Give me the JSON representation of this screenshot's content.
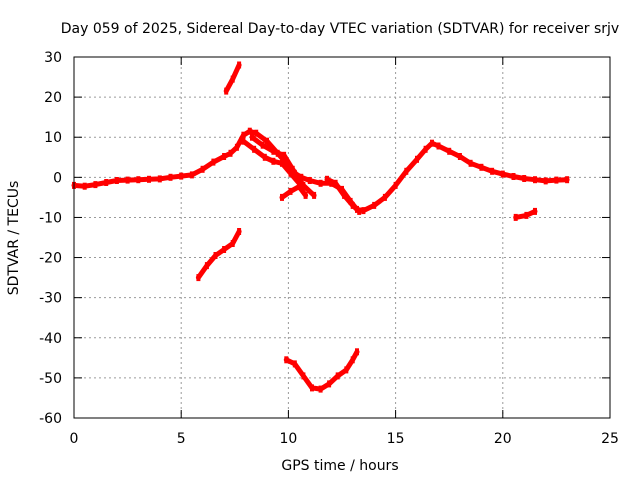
{
  "chart_data": {
    "type": "scatter",
    "title": "Day 059 of 2025, Sidereal Day-to-day VTEC variation (SDTVAR) for receiver srjv",
    "xlabel": "GPS time / hours",
    "ylabel": "SDTVAR / TECUs",
    "xlim": [
      0,
      25
    ],
    "ylim": [
      -60,
      30
    ],
    "x_ticks": [
      0,
      5,
      10,
      15,
      20,
      25
    ],
    "y_ticks": [
      -60,
      -50,
      -40,
      -30,
      -20,
      -10,
      0,
      10,
      20,
      30
    ],
    "grid": true,
    "legend": "none",
    "series_color": "#ff0000",
    "series": [
      {
        "name": "main-track-1",
        "points": [
          [
            0,
            -2
          ],
          [
            0.5,
            -2.2
          ],
          [
            1,
            -1.8
          ],
          [
            1.5,
            -1.3
          ],
          [
            2,
            -0.8
          ],
          [
            2.5,
            -0.7
          ],
          [
            3,
            -0.6
          ],
          [
            3.5,
            -0.5
          ],
          [
            4,
            -0.4
          ],
          [
            4.5,
            0
          ],
          [
            5,
            0.3
          ],
          [
            5.5,
            0.6
          ],
          [
            6,
            2
          ],
          [
            6.5,
            3.8
          ],
          [
            7,
            5.2
          ],
          [
            7.3,
            6
          ],
          [
            7.6,
            7.5
          ],
          [
            7.9,
            10.5
          ],
          [
            8.2,
            11.5
          ],
          [
            8.5,
            11
          ],
          [
            9,
            9
          ],
          [
            9.5,
            6
          ],
          [
            10,
            3
          ],
          [
            10.3,
            1
          ],
          [
            10.6,
            0
          ],
          [
            11,
            -0.8
          ],
          [
            11.5,
            -1.5
          ],
          [
            12,
            -1.5
          ],
          [
            12.5,
            -3
          ],
          [
            12.9,
            -6
          ],
          [
            13.2,
            -8
          ],
          [
            13.5,
            -8.3
          ],
          [
            14,
            -7
          ],
          [
            14.5,
            -5
          ],
          [
            15,
            -2
          ],
          [
            15.5,
            1.5
          ],
          [
            16,
            4.5
          ],
          [
            16.4,
            7
          ],
          [
            16.7,
            8.5
          ],
          [
            17,
            7.8
          ],
          [
            17.5,
            6.5
          ],
          [
            18,
            5.2
          ],
          [
            18.5,
            3.5
          ],
          [
            19,
            2.5
          ],
          [
            19.5,
            1.5
          ],
          [
            20,
            0.8
          ],
          [
            20.5,
            0.2
          ],
          [
            21,
            -0.3
          ],
          [
            21.5,
            -0.6
          ],
          [
            22,
            -0.9
          ],
          [
            22.5,
            -0.7
          ],
          [
            23,
            -0.6
          ]
        ]
      },
      {
        "name": "arc-a",
        "points": [
          [
            7.9,
            9
          ],
          [
            8.4,
            7
          ],
          [
            8.9,
            5
          ],
          [
            9.3,
            4
          ],
          [
            9.7,
            3.5
          ],
          [
            10.1,
            1
          ],
          [
            10.5,
            -1.5
          ]
        ]
      },
      {
        "name": "arc-b",
        "points": [
          [
            8.3,
            10
          ],
          [
            8.8,
            8
          ],
          [
            9.3,
            6.5
          ],
          [
            9.8,
            5.5
          ],
          [
            10.2,
            2
          ],
          [
            10.7,
            -2
          ],
          [
            11.2,
            -4.5
          ]
        ]
      },
      {
        "name": "arc-c",
        "points": [
          [
            9.7,
            -5
          ],
          [
            10.1,
            -3.5
          ],
          [
            10.5,
            -2.3
          ],
          [
            10.8,
            -4.5
          ]
        ]
      },
      {
        "name": "arc-d",
        "points": [
          [
            11.8,
            -0.5
          ],
          [
            12.2,
            -1.5
          ],
          [
            12.6,
            -4.5
          ],
          [
            13,
            -7
          ],
          [
            13.3,
            -8.5
          ]
        ]
      },
      {
        "name": "arc-upper",
        "points": [
          [
            7.1,
            21.5
          ],
          [
            7.4,
            24.5
          ],
          [
            7.7,
            28
          ]
        ]
      },
      {
        "name": "arc-lower-left",
        "points": [
          [
            5.8,
            -25
          ],
          [
            6.2,
            -22
          ],
          [
            6.6,
            -19.5
          ],
          [
            7,
            -18
          ],
          [
            7.4,
            -16.5
          ],
          [
            7.7,
            -13.5
          ]
        ]
      },
      {
        "name": "arc-bottom",
        "points": [
          [
            9.9,
            -45.5
          ],
          [
            10.3,
            -46.5
          ],
          [
            10.7,
            -49.5
          ],
          [
            11.1,
            -52.5
          ],
          [
            11.5,
            -52.8
          ],
          [
            11.9,
            -51.5
          ],
          [
            12.3,
            -49.5
          ],
          [
            12.7,
            -48
          ],
          [
            13,
            -45.5
          ],
          [
            13.2,
            -43.5
          ]
        ]
      },
      {
        "name": "arc-right",
        "points": [
          [
            20.6,
            -10
          ],
          [
            21.1,
            -9.5
          ],
          [
            21.5,
            -8.5
          ]
        ]
      }
    ]
  }
}
